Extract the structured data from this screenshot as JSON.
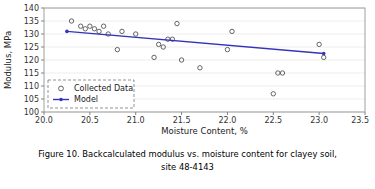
{
  "chart_data": {
    "type": "scatter",
    "xlabel": "Moisture Content, %",
    "ylabel": "Modulus, MPa",
    "annotations": [
      "Figure 10. Backcalculated modulus vs. moisture content for clayey soil,",
      "site 48-4143"
    ],
    "series": [
      {
        "name": "Collected Data",
        "type": "scatter",
        "marker": "circle",
        "color": "#555555",
        "x": [
          20.3,
          20.4,
          20.45,
          20.5,
          20.55,
          20.6,
          20.65,
          20.7,
          20.8,
          20.85,
          21.0,
          21.2,
          21.25,
          21.3,
          21.35,
          21.4,
          21.45,
          21.5,
          21.7,
          22.0,
          22.05,
          22.5,
          22.55,
          22.6,
          23.0,
          23.05
        ],
        "values": [
          135,
          133,
          132,
          133,
          132,
          131,
          133,
          130,
          124,
          131,
          130,
          121,
          126,
          125,
          128,
          128,
          134,
          120,
          117,
          124,
          131,
          107,
          115,
          115,
          126,
          121
        ]
      },
      {
        "name": "Model",
        "type": "line",
        "marker": "circle",
        "color": "#3333bb",
        "x": [
          20.25,
          23.05
        ],
        "values": [
          131.0,
          122.5
        ]
      }
    ],
    "xlim": [
      20.0,
      23.5
    ],
    "ylim": [
      100,
      140
    ],
    "xticks": [
      {
        "value": 20,
        "label": "20.0"
      },
      20.5,
      {
        "value": 21,
        "label": "21.0"
      },
      21.5,
      {
        "value": 22,
        "label": "22.0"
      },
      22.5,
      {
        "value": 23,
        "label": "23.0"
      },
      23.5
    ],
    "yticks": [
      100,
      105,
      110,
      115,
      120,
      125,
      130,
      135,
      140
    ],
    "grid": "y",
    "legend": "lower left"
  }
}
